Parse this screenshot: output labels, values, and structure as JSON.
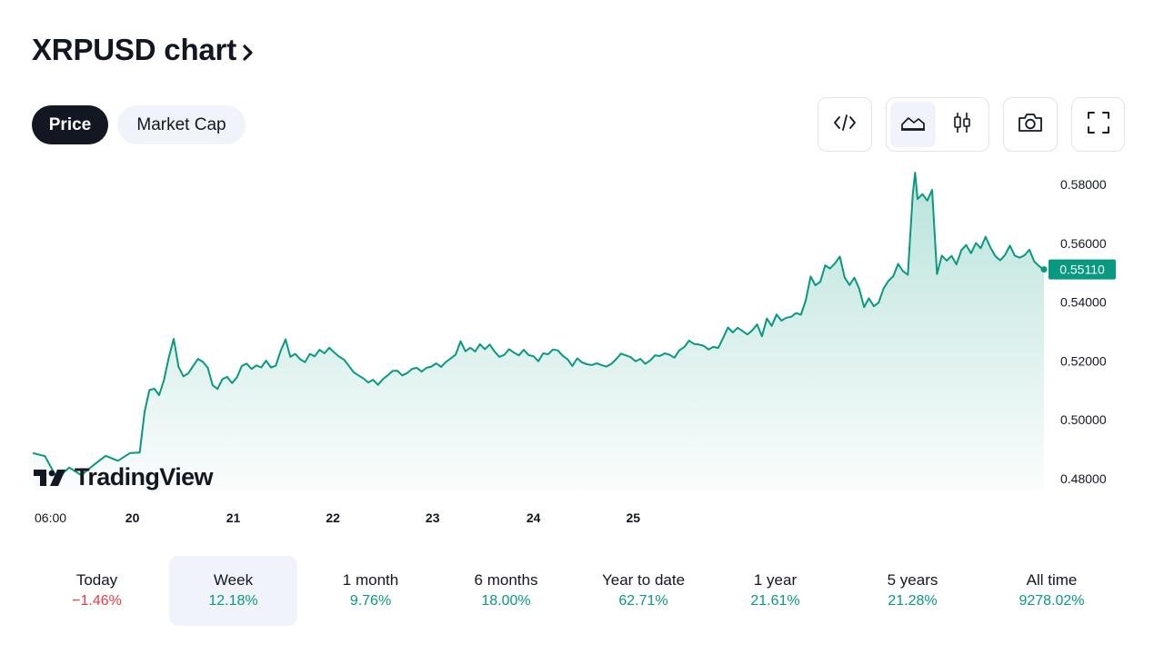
{
  "header": {
    "title": "XRPUSD chart"
  },
  "tabs": [
    {
      "label": "Price",
      "active": true
    },
    {
      "label": "Market Cap",
      "active": false
    }
  ],
  "toolbar": {
    "icons": [
      "code-embed-icon",
      "area-chart-icon",
      "candlestick-icon",
      "camera-icon",
      "fullscreen-icon"
    ],
    "active_chart_type": "area"
  },
  "brand": {
    "name": "TradingView"
  },
  "colors": {
    "accent": "#089981",
    "negative": "#f23645",
    "dark": "#131722",
    "pill_bg": "#f0f3fa"
  },
  "chart_data": {
    "type": "area",
    "title": "",
    "xlabel": "",
    "ylabel": "",
    "x_ticks": [
      "06:00",
      "20",
      "21",
      "22",
      "23",
      "24",
      "25"
    ],
    "y_ticks": [
      "0.58000",
      "0.56000",
      "0.54000",
      "0.52000",
      "0.50000",
      "0.48000"
    ],
    "ylim": [
      0.476,
      0.584
    ],
    "last_price_label": "0.55110",
    "grid": false,
    "series": [
      {
        "points": [
          [
            0.0,
            0.4887
          ],
          [
            0.5,
            0.4877
          ],
          [
            1.0,
            0.4801
          ],
          [
            1.5,
            0.4838
          ],
          [
            2.0,
            0.4812
          ],
          [
            2.5,
            0.4846
          ],
          [
            3.0,
            0.4878
          ],
          [
            3.5,
            0.4861
          ],
          [
            4.0,
            0.4887
          ],
          [
            4.4,
            0.4889
          ],
          [
            4.6,
            0.5027
          ],
          [
            4.8,
            0.5101
          ],
          [
            5.0,
            0.5106
          ],
          [
            5.2,
            0.5084
          ],
          [
            5.4,
            0.5135
          ],
          [
            5.6,
            0.5213
          ],
          [
            5.8,
            0.5275
          ],
          [
            6.0,
            0.518
          ],
          [
            6.2,
            0.5148
          ],
          [
            6.4,
            0.5158
          ],
          [
            6.6,
            0.5183
          ],
          [
            6.8,
            0.5207
          ],
          [
            7.0,
            0.5197
          ],
          [
            7.2,
            0.5177
          ],
          [
            7.4,
            0.5118
          ],
          [
            7.6,
            0.5105
          ],
          [
            7.8,
            0.5138
          ],
          [
            8.0,
            0.5146
          ],
          [
            8.2,
            0.5125
          ],
          [
            8.4,
            0.5144
          ],
          [
            8.6,
            0.5183
          ],
          [
            8.8,
            0.5191
          ],
          [
            9.0,
            0.5173
          ],
          [
            9.2,
            0.5185
          ],
          [
            9.4,
            0.5178
          ],
          [
            9.6,
            0.5201
          ],
          [
            9.8,
            0.5178
          ],
          [
            10.0,
            0.5184
          ],
          [
            10.2,
            0.5235
          ],
          [
            10.4,
            0.5273
          ],
          [
            10.6,
            0.5214
          ],
          [
            10.8,
            0.5224
          ],
          [
            11.0,
            0.5206
          ],
          [
            11.2,
            0.5196
          ],
          [
            11.4,
            0.5224
          ],
          [
            11.6,
            0.5216
          ],
          [
            11.8,
            0.5238
          ],
          [
            12.0,
            0.5226
          ],
          [
            12.2,
            0.5245
          ],
          [
            12.4,
            0.5229
          ],
          [
            12.6,
            0.5215
          ],
          [
            12.8,
            0.5205
          ],
          [
            13.0,
            0.5184
          ],
          [
            13.2,
            0.5162
          ],
          [
            13.4,
            0.5151
          ],
          [
            13.6,
            0.5141
          ],
          [
            13.8,
            0.5127
          ],
          [
            14.0,
            0.5136
          ],
          [
            14.2,
            0.5119
          ],
          [
            14.4,
            0.5138
          ],
          [
            14.6,
            0.5151
          ],
          [
            14.8,
            0.5166
          ],
          [
            15.0,
            0.5167
          ],
          [
            15.2,
            0.5151
          ],
          [
            15.4,
            0.5159
          ],
          [
            15.6,
            0.5173
          ],
          [
            15.8,
            0.5177
          ],
          [
            16.0,
            0.5164
          ],
          [
            16.2,
            0.5177
          ],
          [
            16.4,
            0.5181
          ],
          [
            16.6,
            0.5192
          ],
          [
            16.8,
            0.518
          ],
          [
            17.0,
            0.5197
          ],
          [
            17.2,
            0.5209
          ],
          [
            17.4,
            0.5222
          ],
          [
            17.6,
            0.5267
          ],
          [
            17.8,
            0.5233
          ],
          [
            18.0,
            0.5245
          ],
          [
            18.2,
            0.5232
          ],
          [
            18.4,
            0.5257
          ],
          [
            18.6,
            0.524
          ],
          [
            18.8,
            0.5256
          ],
          [
            19.0,
            0.5232
          ],
          [
            19.2,
            0.5214
          ],
          [
            19.4,
            0.5221
          ],
          [
            19.6,
            0.524
          ],
          [
            19.8,
            0.5228
          ],
          [
            20.0,
            0.5219
          ],
          [
            20.2,
            0.5238
          ],
          [
            20.4,
            0.522
          ],
          [
            20.6,
            0.5216
          ],
          [
            20.8,
            0.5199
          ],
          [
            21.0,
            0.5226
          ],
          [
            21.2,
            0.5223
          ],
          [
            21.4,
            0.5239
          ],
          [
            21.6,
            0.5236
          ],
          [
            21.8,
            0.5218
          ],
          [
            22.0,
            0.5206
          ],
          [
            22.2,
            0.5183
          ],
          [
            22.4,
            0.5209
          ],
          [
            22.6,
            0.5195
          ],
          [
            22.8,
            0.5189
          ],
          [
            23.0,
            0.5186
          ],
          [
            23.2,
            0.5192
          ],
          [
            23.4,
            0.5186
          ],
          [
            23.6,
            0.5181
          ],
          [
            23.8,
            0.519
          ],
          [
            24.0,
            0.5206
          ],
          [
            24.2,
            0.5225
          ],
          [
            24.4,
            0.5219
          ],
          [
            24.6,
            0.5213
          ],
          [
            24.8,
            0.5199
          ],
          [
            25.0,
            0.5207
          ],
          [
            25.2,
            0.519
          ],
          [
            25.4,
            0.5202
          ],
          [
            25.6,
            0.5219
          ],
          [
            25.8,
            0.5217
          ],
          [
            26.0,
            0.5226
          ],
          [
            26.2,
            0.5221
          ],
          [
            26.4,
            0.5211
          ],
          [
            26.6,
            0.5236
          ],
          [
            26.8,
            0.5247
          ],
          [
            27.0,
            0.5269
          ],
          [
            27.2,
            0.5258
          ],
          [
            27.4,
            0.5256
          ],
          [
            27.6,
            0.5252
          ],
          [
            27.8,
            0.5239
          ],
          [
            28.0,
            0.5248
          ],
          [
            28.2,
            0.5244
          ],
          [
            28.4,
            0.5278
          ],
          [
            28.6,
            0.5314
          ],
          [
            28.8,
            0.5297
          ],
          [
            29.0,
            0.5313
          ],
          [
            29.2,
            0.5302
          ],
          [
            29.4,
            0.529
          ],
          [
            29.6,
            0.5304
          ],
          [
            29.8,
            0.5324
          ],
          [
            30.0,
            0.5284
          ],
          [
            30.2,
            0.5344
          ],
          [
            30.4,
            0.5319
          ],
          [
            30.6,
            0.5358
          ],
          [
            30.8,
            0.5337
          ],
          [
            31.0,
            0.5347
          ],
          [
            31.2,
            0.535
          ],
          [
            31.4,
            0.5363
          ],
          [
            31.6,
            0.5357
          ],
          [
            31.8,
            0.5405
          ],
          [
            32.0,
            0.5487
          ],
          [
            32.2,
            0.5457
          ],
          [
            32.4,
            0.5469
          ],
          [
            32.6,
            0.5525
          ],
          [
            32.8,
            0.5514
          ],
          [
            33.0,
            0.5531
          ],
          [
            33.2,
            0.5555
          ],
          [
            33.4,
            0.5484
          ],
          [
            33.6,
            0.5458
          ],
          [
            33.8,
            0.5483
          ],
          [
            34.0,
            0.5446
          ],
          [
            34.2,
            0.5383
          ],
          [
            34.4,
            0.5413
          ],
          [
            34.6,
            0.5386
          ],
          [
            34.8,
            0.5398
          ],
          [
            35.0,
            0.5446
          ],
          [
            35.2,
            0.5472
          ],
          [
            35.4,
            0.5488
          ],
          [
            35.6,
            0.553
          ],
          [
            35.8,
            0.5505
          ],
          [
            36.0,
            0.5493
          ],
          [
            36.2,
            0.5764
          ],
          [
            36.3,
            0.584
          ],
          [
            36.4,
            0.575
          ],
          [
            36.6,
            0.5767
          ],
          [
            36.8,
            0.5745
          ],
          [
            37.0,
            0.5781
          ],
          [
            37.2,
            0.5495
          ],
          [
            37.4,
            0.5558
          ],
          [
            37.6,
            0.5541
          ],
          [
            37.8,
            0.5557
          ],
          [
            38.0,
            0.5528
          ],
          [
            38.2,
            0.5576
          ],
          [
            38.4,
            0.5594
          ],
          [
            38.6,
            0.5566
          ],
          [
            38.8,
            0.5601
          ],
          [
            39.0,
            0.5583
          ],
          [
            39.2,
            0.5622
          ],
          [
            39.4,
            0.5585
          ],
          [
            39.6,
            0.5556
          ],
          [
            39.8,
            0.5542
          ],
          [
            40.0,
            0.556
          ],
          [
            40.2,
            0.5592
          ],
          [
            40.4,
            0.5558
          ],
          [
            40.6,
            0.5551
          ],
          [
            40.8,
            0.5559
          ],
          [
            41.0,
            0.5578
          ],
          [
            41.2,
            0.5538
          ],
          [
            41.4,
            0.5522
          ],
          [
            41.6,
            0.5511
          ]
        ]
      }
    ],
    "x_tick_positions": [
      0.0,
      4.1,
      8.25,
      12.35,
      16.45,
      20.6,
      24.7
    ]
  },
  "stats": [
    {
      "label": "Today",
      "value": "−1.46%",
      "sign": "neg",
      "active": false
    },
    {
      "label": "Week",
      "value": "12.18%",
      "sign": "pos",
      "active": true
    },
    {
      "label": "1 month",
      "value": "9.76%",
      "sign": "pos",
      "active": false
    },
    {
      "label": "6 months",
      "value": "18.00%",
      "sign": "pos",
      "active": false
    },
    {
      "label": "Year to date",
      "value": "62.71%",
      "sign": "pos",
      "active": false
    },
    {
      "label": "1 year",
      "value": "21.61%",
      "sign": "pos",
      "active": false
    },
    {
      "label": "5 years",
      "value": "21.28%",
      "sign": "pos",
      "active": false
    },
    {
      "label": "All time",
      "value": "9278.02%",
      "sign": "pos",
      "active": false
    }
  ]
}
